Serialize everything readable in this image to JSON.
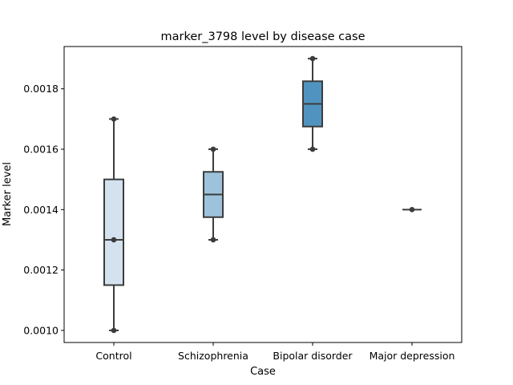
{
  "chart_data": {
    "type": "box",
    "title": "marker_3798 level by disease case",
    "xlabel": "Case",
    "ylabel": "Marker level",
    "ylim": [
      0.00096,
      0.00194
    ],
    "yticks": [
      0.001,
      0.0012,
      0.0014,
      0.0016,
      0.0018
    ],
    "ytick_labels": [
      "0.0010",
      "0.0012",
      "0.0014",
      "0.0016",
      "0.0018"
    ],
    "grid": false,
    "categories": [
      "Control",
      "Schizophrenia",
      "Bipolar disorder",
      "Major depression"
    ],
    "boxes": [
      {
        "category": "Control",
        "whisker_low": 0.001,
        "q1": 0.00115,
        "median": 0.0013,
        "q3": 0.0015,
        "whisker_high": 0.0017,
        "points": [
          0.001,
          0.0013,
          0.0017
        ],
        "color": "#d4e2f0"
      },
      {
        "category": "Schizophrenia",
        "whisker_low": 0.0013,
        "q1": 0.001375,
        "median": 0.00145,
        "q3": 0.001525,
        "whisker_high": 0.0016,
        "points": [
          0.0013,
          0.0016
        ],
        "color": "#9dc3dc"
      },
      {
        "category": "Bipolar disorder",
        "whisker_low": 0.0016,
        "q1": 0.001675,
        "median": 0.00175,
        "q3": 0.001825,
        "whisker_high": 0.0019,
        "points": [
          0.0016,
          0.0019
        ],
        "color": "#5193c0"
      },
      {
        "category": "Major depression",
        "whisker_low": 0.0014,
        "q1": 0.0014,
        "median": 0.0014,
        "q3": 0.0014,
        "whisker_high": 0.0014,
        "points": [
          0.0014
        ],
        "color": "#2f6fa8"
      }
    ]
  }
}
